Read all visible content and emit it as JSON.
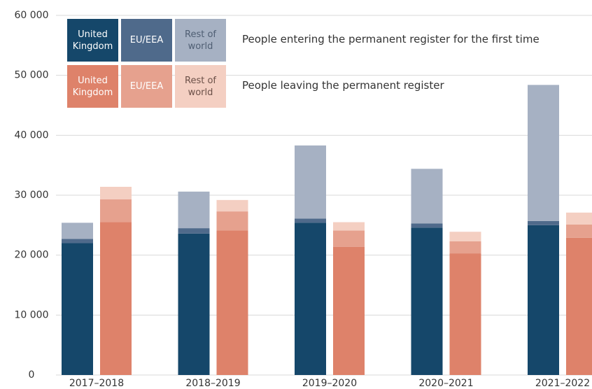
{
  "chart_data": {
    "type": "bar",
    "categories": [
      "2017–2018",
      "2018–2019",
      "2019–2020",
      "2020–2021",
      "2021–2022"
    ],
    "ylim": [
      0,
      60000
    ],
    "yticks": [
      0,
      {
        "value": 10000,
        "label": "10 000"
      },
      {
        "value": 20000,
        "label": "20 000"
      },
      {
        "value": 30000,
        "label": "30 000"
      },
      {
        "value": 40000,
        "label": "40 000"
      },
      {
        "value": 50000,
        "label": "50 000"
      },
      {
        "value": 60000,
        "label": "60 000"
      }
    ],
    "grid": true,
    "series_groups": [
      {
        "name": "People entering the permanent register for the first time",
        "series": [
          {
            "name": "United Kingdom",
            "color": "#15476a",
            "values": [
              22000,
              23600,
              25400,
              24600,
              25000
            ]
          },
          {
            "name": "EU/EEA",
            "color": "#4f6a8b",
            "values": [
              700,
              900,
              700,
              700,
              700
            ]
          },
          {
            "name": "Rest of world",
            "color": "#a6b1c3",
            "values": [
              2700,
              6100,
              12200,
              9100,
              22700
            ]
          }
        ]
      },
      {
        "name": "People leaving the permanent register",
        "series": [
          {
            "name": "United Kingdom",
            "color": "#de826a",
            "values": [
              25500,
              24100,
              21400,
              20300,
              22900
            ]
          },
          {
            "name": "EU/EEA",
            "color": "#e6a18e",
            "values": [
              3800,
              3200,
              2700,
              2000,
              2200
            ]
          },
          {
            "name": "Rest of world",
            "color": "#f4cfc2",
            "values": [
              2100,
              1900,
              1400,
              1600,
              2000
            ]
          }
        ]
      }
    ]
  }
}
